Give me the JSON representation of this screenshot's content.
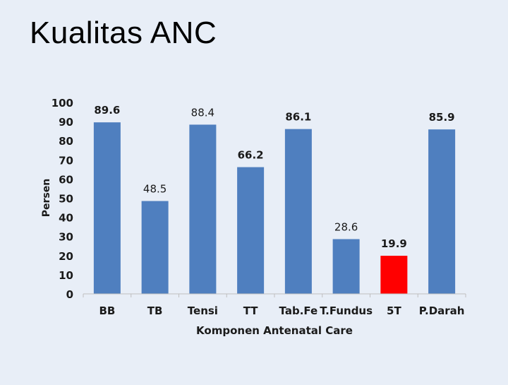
{
  "slide": {
    "title": "Kualitas ANC"
  },
  "chart_data": {
    "type": "bar",
    "categories": [
      "BB",
      "TB",
      "Tensi",
      "TT",
      "Tab.Fe",
      "T.Fundus",
      "5T",
      "P.Darah"
    ],
    "values": [
      89.6,
      48.5,
      88.4,
      66.2,
      86.1,
      28.6,
      19.9,
      85.9
    ],
    "value_labels": [
      "89.6",
      "48.5",
      "88.4",
      "66.2",
      "86.1",
      "28.6",
      "19.9",
      "85.9"
    ],
    "bar_colors": [
      "#4f7fbf",
      "#4f7fbf",
      "#4f7fbf",
      "#4f7fbf",
      "#4f7fbf",
      "#4f7fbf",
      "#ff0000",
      "#4f7fbf"
    ],
    "bold_value_labels": [
      true,
      false,
      false,
      true,
      true,
      false,
      true,
      true
    ],
    "title": "",
    "xlabel": "Komponen Antenatal Care",
    "ylabel": "Persen",
    "ylim": [
      0,
      100
    ],
    "yticks": [
      "0",
      "10",
      "20",
      "30",
      "40",
      "50",
      "60",
      "70",
      "80",
      "90",
      "100"
    ],
    "ytick_values": [
      0,
      10,
      20,
      30,
      40,
      50,
      60,
      70,
      80,
      90,
      100
    ],
    "grid": false,
    "legend": "none"
  }
}
